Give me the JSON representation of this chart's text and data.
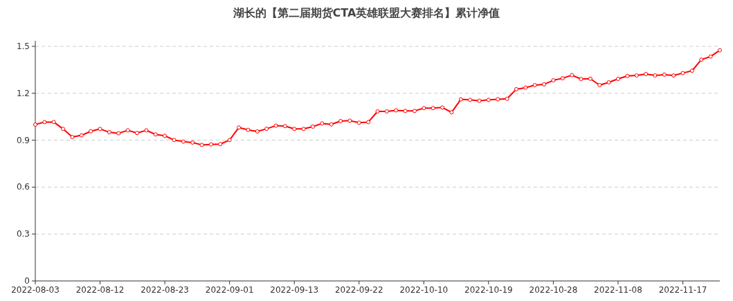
{
  "chart_data": {
    "type": "line",
    "title": "湖长的【第二届期货CTA英雄联盟大赛排名】累计净值",
    "categories": [
      "2022-08-03",
      null,
      null,
      null,
      null,
      null,
      null,
      "2022-08-12",
      null,
      null,
      null,
      null,
      null,
      null,
      "2022-08-23",
      null,
      null,
      null,
      null,
      null,
      null,
      "2022-09-01",
      null,
      null,
      null,
      null,
      null,
      null,
      "2022-09-13",
      null,
      null,
      null,
      null,
      null,
      null,
      "2022-09-22",
      null,
      null,
      null,
      null,
      null,
      null,
      "2022-10-10",
      null,
      null,
      null,
      null,
      null,
      null,
      "2022-10-19",
      null,
      null,
      null,
      null,
      null,
      null,
      "2022-10-28",
      null,
      null,
      null,
      null,
      null,
      null,
      "2022-11-08",
      null,
      null,
      null,
      null,
      null,
      null,
      "2022-11-17",
      null,
      null,
      null,
      null
    ],
    "values": [
      1.0,
      1.016,
      1.016,
      0.972,
      0.92,
      0.931,
      0.957,
      0.972,
      0.951,
      0.944,
      0.963,
      0.946,
      0.963,
      0.937,
      0.928,
      0.901,
      0.891,
      0.885,
      0.87,
      0.873,
      0.875,
      0.901,
      0.981,
      0.966,
      0.956,
      0.973,
      0.993,
      0.99,
      0.972,
      0.972,
      0.987,
      1.007,
      1.001,
      1.022,
      1.025,
      1.012,
      1.016,
      1.084,
      1.084,
      1.091,
      1.087,
      1.087,
      1.105,
      1.105,
      1.109,
      1.078,
      1.161,
      1.158,
      1.152,
      1.158,
      1.162,
      1.165,
      1.226,
      1.236,
      1.252,
      1.257,
      1.283,
      1.296,
      1.316,
      1.291,
      1.293,
      1.252,
      1.27,
      1.292,
      1.311,
      1.314,
      1.323,
      1.314,
      1.319,
      1.314,
      1.329,
      1.344,
      1.415,
      1.435,
      1.475
    ],
    "color": "#ff0000",
    "marker": "circle",
    "ylim": [
      0,
      1.5
    ],
    "yticks": [
      0,
      0.3,
      0.6,
      0.9,
      1.2,
      1.5
    ],
    "grid": "y"
  }
}
